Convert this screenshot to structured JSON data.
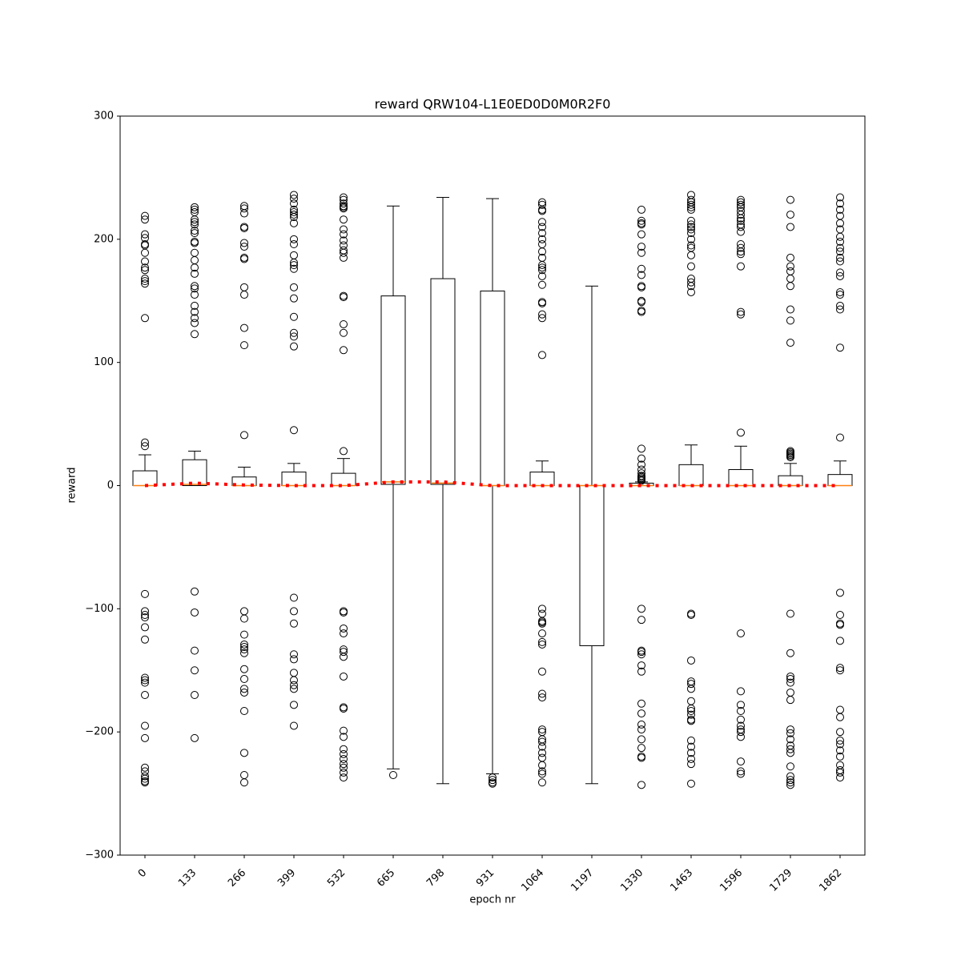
{
  "chart_data": {
    "type": "boxplot",
    "title": "reward QRW104-L1E0ED0D0M0R2F0",
    "x_label": "epoch nr",
    "y_label": "reward",
    "categories": [
      "0",
      "133",
      "266",
      "399",
      "532",
      "665",
      "798",
      "931",
      "1064",
      "1197",
      "1330",
      "1463",
      "1596",
      "1729",
      "1862"
    ],
    "box_color": "#000000",
    "median_color": "#ff7f0e",
    "mean_color": "#ff0000",
    "ylim": [
      -300,
      300
    ],
    "yticks": [
      {
        "value": -300,
        "label": "−300"
      },
      {
        "value": -200,
        "label": "−200"
      },
      {
        "value": -100,
        "label": "−100"
      },
      0,
      100,
      200,
      300
    ],
    "boxes": [
      {
        "q1": 0,
        "median": 0,
        "q3": 12,
        "whislo": 0,
        "whishi": 25,
        "fliers": [
          219,
          216,
          204,
          201,
          196,
          195,
          189,
          182,
          177,
          175,
          168,
          166,
          164,
          136,
          35,
          32,
          -88,
          -102,
          -105,
          -107,
          -115,
          -125,
          -156,
          -158,
          -160,
          -170,
          -195,
          -205,
          -229,
          -232,
          -236,
          -238,
          -240,
          -241
        ]
      },
      {
        "q1": 0,
        "median": 1,
        "q3": 21,
        "whislo": 0,
        "whishi": 28,
        "fliers": [
          226,
          224,
          222,
          216,
          214,
          212,
          207,
          205,
          198,
          197,
          189,
          183,
          177,
          172,
          162,
          160,
          155,
          146,
          141,
          136,
          132,
          123,
          -86,
          -103,
          -134,
          -150,
          -170,
          -205
        ]
      },
      {
        "q1": 0,
        "median": 0,
        "q3": 7,
        "whislo": 0,
        "whishi": 15,
        "fliers": [
          227,
          225,
          221,
          210,
          209,
          197,
          194,
          185,
          184,
          161,
          155,
          128,
          114,
          41,
          -102,
          -108,
          -121,
          -129,
          -131,
          -133,
          -136,
          -149,
          -157,
          -165,
          -168,
          -183,
          -217,
          -235,
          -241
        ]
      },
      {
        "q1": 0,
        "median": 0,
        "q3": 11,
        "whislo": 0,
        "whishi": 18,
        "fliers": [
          236,
          233,
          229,
          224,
          222,
          220,
          218,
          213,
          200,
          196,
          187,
          181,
          179,
          176,
          161,
          152,
          137,
          124,
          121,
          113,
          45,
          -91,
          -102,
          -112,
          -137,
          -141,
          -152,
          -158,
          -162,
          -165,
          -178,
          -195
        ]
      },
      {
        "q1": 0,
        "median": 0,
        "q3": 10,
        "whislo": 0,
        "whishi": 22,
        "fliers": [
          234,
          232,
          229,
          227,
          226,
          225,
          216,
          208,
          204,
          199,
          195,
          191,
          189,
          185,
          154,
          153,
          131,
          124,
          110,
          28,
          -102,
          -103,
          -116,
          -120,
          -133,
          -135,
          -139,
          -155,
          -180,
          -181,
          -199,
          -204,
          -214,
          -218,
          -222,
          -226,
          -229,
          -233,
          -237
        ]
      },
      {
        "q1": 1,
        "median": 3,
        "q3": 154,
        "whislo": -230,
        "whishi": 227,
        "fliers": [
          -235
        ]
      },
      {
        "q1": 1,
        "median": 2,
        "q3": 168,
        "whislo": -242,
        "whishi": 234,
        "fliers": []
      },
      {
        "q1": 0,
        "median": 0,
        "q3": 158,
        "whislo": -234,
        "whishi": 233,
        "fliers": [
          -237,
          -239,
          -241,
          -242
        ]
      },
      {
        "q1": 0,
        "median": 0,
        "q3": 11,
        "whislo": 0,
        "whishi": 20,
        "fliers": [
          230,
          228,
          224,
          223,
          214,
          210,
          205,
          200,
          196,
          190,
          185,
          179,
          177,
          175,
          170,
          163,
          149,
          148,
          139,
          136,
          106,
          -100,
          -104,
          -110,
          -111,
          -112,
          -120,
          -127,
          -129,
          -151,
          -169,
          -172,
          -198,
          -200,
          -206,
          -208,
          -212,
          -217,
          -221,
          -227,
          -232,
          -234,
          -241
        ]
      },
      {
        "q1": -130,
        "median": 0,
        "q3": 0,
        "whislo": -242,
        "whishi": 162,
        "fliers": []
      },
      {
        "q1": 0,
        "median": 0,
        "q3": 2,
        "whislo": 0,
        "whishi": 3,
        "fliers": [
          30,
          22,
          17,
          13,
          10,
          8,
          7,
          6,
          5,
          4,
          224,
          215,
          213,
          212,
          204,
          194,
          189,
          176,
          171,
          162,
          161,
          150,
          149,
          142,
          141,
          -100,
          -109,
          -134,
          -135,
          -137,
          -146,
          -151,
          -177,
          -185,
          -194,
          -198,
          -206,
          -213,
          -220,
          -221,
          -243
        ]
      },
      {
        "q1": 0,
        "median": 0,
        "q3": 17,
        "whislo": 0,
        "whishi": 33,
        "fliers": [
          236,
          232,
          230,
          228,
          226,
          224,
          215,
          212,
          210,
          208,
          205,
          200,
          195,
          193,
          187,
          178,
          168,
          165,
          162,
          157,
          -104,
          -105,
          -142,
          -159,
          -161,
          -165,
          -175,
          -181,
          -183,
          -186,
          -190,
          -191,
          -207,
          -212,
          -217,
          -222,
          -226,
          -242
        ]
      },
      {
        "q1": 0,
        "median": 0,
        "q3": 13,
        "whislo": 0,
        "whishi": 32,
        "fliers": [
          232,
          230,
          228,
          226,
          223,
          220,
          217,
          215,
          212,
          210,
          206,
          196,
          193,
          190,
          188,
          178,
          141,
          139,
          43,
          -120,
          -167,
          -178,
          -183,
          -190,
          -195,
          -198,
          -200,
          -204,
          -224,
          -232,
          -234
        ]
      },
      {
        "q1": 0,
        "median": 0,
        "q3": 8,
        "whislo": 0,
        "whishi": 18,
        "fliers": [
          28,
          27,
          26,
          25,
          24,
          23,
          232,
          220,
          210,
          185,
          178,
          174,
          168,
          162,
          143,
          134,
          116,
          -104,
          -136,
          -155,
          -157,
          -160,
          -168,
          -174,
          -198,
          -201,
          -206,
          -211,
          -214,
          -217,
          -228,
          -236,
          -239,
          -241,
          -243
        ]
      },
      {
        "q1": 0,
        "median": 0,
        "q3": 9,
        "whislo": 0,
        "whishi": 20,
        "fliers": [
          234,
          229,
          224,
          219,
          213,
          208,
          202,
          198,
          193,
          190,
          185,
          182,
          173,
          170,
          157,
          155,
          146,
          143,
          112,
          39,
          -87,
          -105,
          -112,
          -113,
          -126,
          -148,
          -150,
          -182,
          -188,
          -200,
          -207,
          -210,
          -215,
          -220,
          -227,
          -231,
          -233,
          -237
        ]
      }
    ],
    "mean_values": [
      0,
      2,
      0.5,
      0,
      0,
      3,
      3,
      0,
      0,
      0,
      0,
      0,
      0,
      0,
      0
    ]
  }
}
